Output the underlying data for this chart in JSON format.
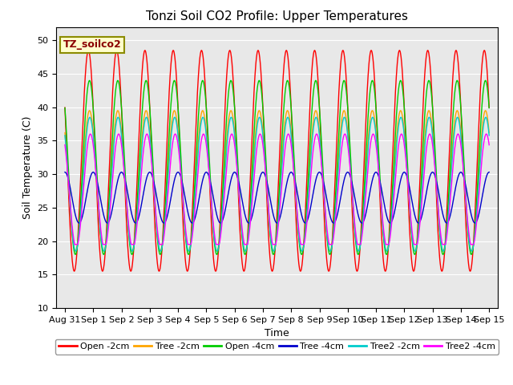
{
  "title": "Tonzi Soil CO2 Profile: Upper Temperatures",
  "ylabel": "Soil Temperature (C)",
  "xlabel": "Time",
  "legend_title": "TZ_soilco2",
  "ylim": [
    10,
    52
  ],
  "xtick_labels": [
    "Aug 31",
    "Sep 1",
    "Sep 2",
    "Sep 3",
    "Sep 4",
    "Sep 5",
    "Sep 6",
    "Sep 7",
    "Sep 8",
    "Sep 9",
    "Sep 10",
    "Sep 11",
    "Sep 12",
    "Sep 13",
    "Sep 14",
    "Sep 15"
  ],
  "series": [
    {
      "label": "Open -2cm",
      "color": "#FF0000",
      "amplitude": 16.5,
      "mean": 32.0,
      "phase_days": 0.58,
      "min_val": 15.0
    },
    {
      "label": "Tree -2cm",
      "color": "#FFA500",
      "amplitude": 10.5,
      "mean": 29.0,
      "phase_days": 0.62,
      "min_val": 18.0
    },
    {
      "label": "Open -4cm",
      "color": "#00CC00",
      "amplitude": 13.0,
      "mean": 31.0,
      "phase_days": 0.62,
      "min_val": 18.0
    },
    {
      "label": "Tree -4cm",
      "color": "#0000CC",
      "amplitude": 3.8,
      "mean": 26.5,
      "phase_days": 0.75,
      "min_val": 22.5
    },
    {
      "label": "Tree2 -2cm",
      "color": "#00CCCC",
      "amplitude": 10.0,
      "mean": 28.5,
      "phase_days": 0.63,
      "min_val": 18.5
    },
    {
      "label": "Tree2 -4cm",
      "color": "#FF00FF",
      "amplitude": 8.5,
      "mean": 27.5,
      "phase_days": 0.65,
      "min_val": 19.5
    }
  ],
  "background_color": "#E8E8E8",
  "figure_background": "#FFFFFF",
  "grid_color": "#FFFFFF",
  "title_fontsize": 11,
  "label_fontsize": 9,
  "tick_fontsize": 8
}
